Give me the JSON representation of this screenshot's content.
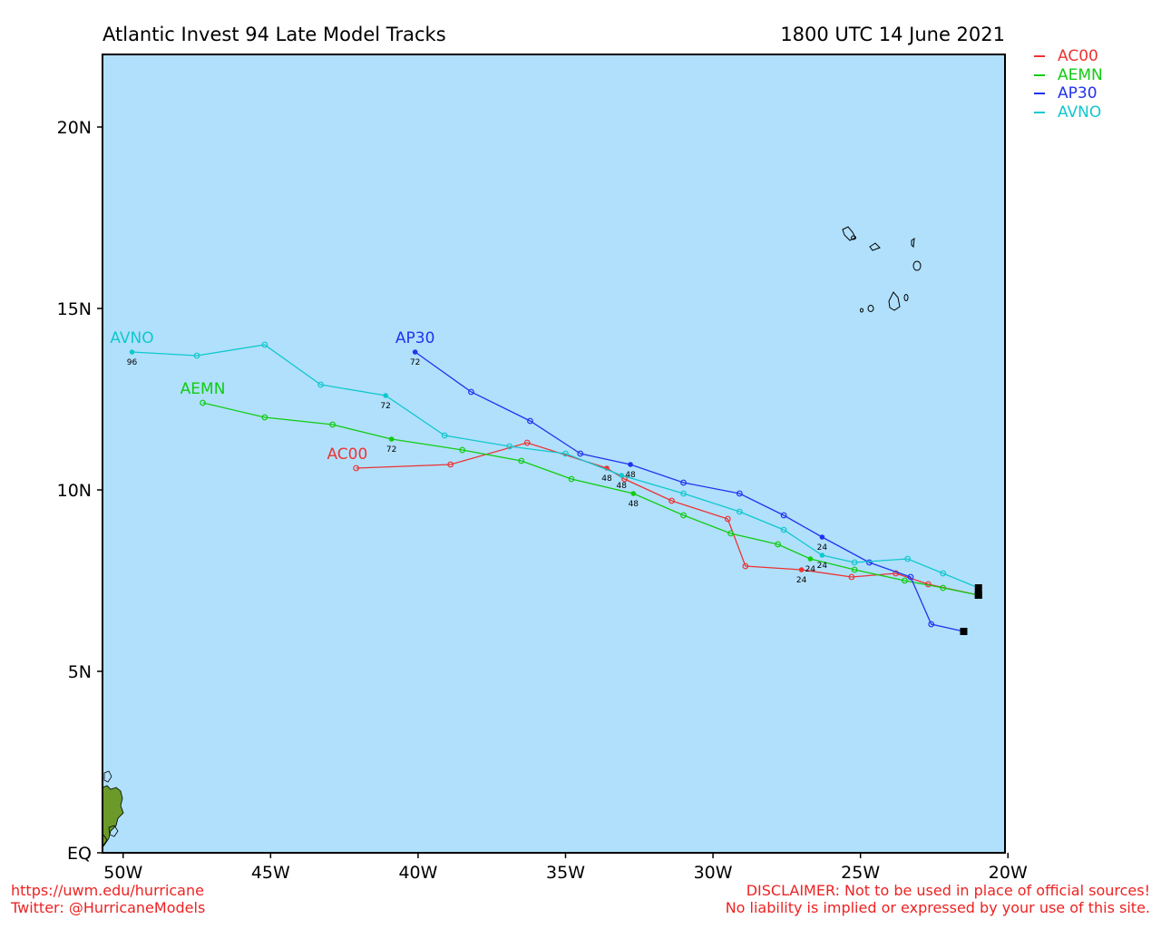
{
  "header": {
    "title": "Atlantic Invest 94 Late Model Tracks",
    "timestamp": "1800 UTC 14 June 2021"
  },
  "map": {
    "lon_range": [
      -50.7,
      -20.1
    ],
    "lat_range": [
      0,
      22
    ],
    "ocean_color": "#b0e0fc",
    "land_color": "#6b9a2a",
    "x_ticks": [
      {
        "lon": -50,
        "label": "50W"
      },
      {
        "lon": -45,
        "label": "45W"
      },
      {
        "lon": -40,
        "label": "40W"
      },
      {
        "lon": -35,
        "label": "35W"
      },
      {
        "lon": -30,
        "label": "30W"
      },
      {
        "lon": -25,
        "label": "25W"
      },
      {
        "lon": -20,
        "label": "20W"
      }
    ],
    "y_ticks": [
      {
        "lat": 0,
        "label": "EQ"
      },
      {
        "lat": 5,
        "label": "5N"
      },
      {
        "lat": 10,
        "label": "10N"
      },
      {
        "lat": 15,
        "label": "15N"
      },
      {
        "lat": 20,
        "label": "20N"
      }
    ]
  },
  "legend": [
    {
      "name": "AC00",
      "color": "#ee3333"
    },
    {
      "name": "AEMN",
      "color": "#11cc11"
    },
    {
      "name": "AP30",
      "color": "#2233ee"
    },
    {
      "name": "AVNO",
      "color": "#11c8cc"
    }
  ],
  "chart_data": {
    "type": "map_tracks",
    "tracks": [
      {
        "name": "AC00",
        "color": "#ee3333",
        "points": [
          [
            -21.0,
            7.1
          ],
          [
            -22.7,
            7.4
          ],
          [
            -23.8,
            7.7
          ],
          [
            -25.3,
            7.6
          ],
          [
            -27.0,
            7.8
          ],
          [
            -28.9,
            7.9
          ],
          [
            -29.5,
            9.2
          ],
          [
            -31.4,
            9.7
          ],
          [
            -33.0,
            10.3
          ],
          [
            -33.6,
            10.6
          ],
          [
            -36.3,
            11.3
          ],
          [
            -38.9,
            10.7
          ],
          [
            -42.1,
            10.6
          ]
        ],
        "label_at": [
          [
            -27.0,
            7.8,
            "24"
          ],
          [
            -33.6,
            10.6,
            "48"
          ]
        ],
        "end_label": "AC00",
        "end_label_pos": [
          -42.4,
          10.8
        ]
      },
      {
        "name": "AEMN",
        "color": "#11cc11",
        "points": [
          [
            -21.0,
            7.1
          ],
          [
            -22.2,
            7.3
          ],
          [
            -23.5,
            7.5
          ],
          [
            -25.2,
            7.8
          ],
          [
            -26.7,
            8.1
          ],
          [
            -27.8,
            8.5
          ],
          [
            -29.4,
            8.8
          ],
          [
            -31.0,
            9.3
          ],
          [
            -32.7,
            9.9
          ],
          [
            -34.8,
            10.3
          ],
          [
            -36.5,
            10.8
          ],
          [
            -38.5,
            11.1
          ],
          [
            -40.9,
            11.4
          ],
          [
            -42.9,
            11.8
          ],
          [
            -45.2,
            12.0
          ],
          [
            -47.3,
            12.4
          ]
        ],
        "label_at": [
          [
            -26.7,
            8.1,
            "24"
          ],
          [
            -32.7,
            9.9,
            "48"
          ],
          [
            -40.9,
            11.4,
            "72"
          ]
        ],
        "end_label": "AEMN",
        "end_label_pos": [
          -47.3,
          12.6
        ]
      },
      {
        "name": "AP30",
        "color": "#2233ee",
        "points": [
          [
            -21.5,
            6.1
          ],
          [
            -22.6,
            6.3
          ],
          [
            -23.3,
            7.6
          ],
          [
            -24.7,
            8.0
          ],
          [
            -26.3,
            8.7
          ],
          [
            -27.6,
            9.3
          ],
          [
            -29.1,
            9.9
          ],
          [
            -31.0,
            10.2
          ],
          [
            -32.8,
            10.7
          ],
          [
            -34.5,
            11.0
          ],
          [
            -36.2,
            11.9
          ],
          [
            -38.2,
            12.7
          ],
          [
            -40.1,
            13.8
          ]
        ],
        "label_at": [
          [
            -26.3,
            8.7,
            "24"
          ],
          [
            -32.8,
            10.7,
            "48"
          ],
          [
            -40.1,
            13.8,
            "72"
          ]
        ],
        "end_label": "AP30",
        "end_label_pos": [
          -40.1,
          14.0
        ]
      },
      {
        "name": "AVNO",
        "color": "#11c8cc",
        "points": [
          [
            -21.0,
            7.3
          ],
          [
            -22.2,
            7.7
          ],
          [
            -23.4,
            8.1
          ],
          [
            -25.2,
            8.0
          ],
          [
            -26.3,
            8.2
          ],
          [
            -27.6,
            8.9
          ],
          [
            -29.1,
            9.4
          ],
          [
            -31.0,
            9.9
          ],
          [
            -33.1,
            10.4
          ],
          [
            -35.0,
            11.0
          ],
          [
            -36.9,
            11.2
          ],
          [
            -39.1,
            11.5
          ],
          [
            -41.1,
            12.6
          ],
          [
            -43.3,
            12.9
          ],
          [
            -45.2,
            14.0
          ],
          [
            -47.5,
            13.7
          ],
          [
            -49.7,
            13.8
          ]
        ],
        "label_at": [
          [
            -26.3,
            8.2,
            "24"
          ],
          [
            -33.1,
            10.4,
            "48"
          ],
          [
            -41.1,
            12.6,
            "72"
          ],
          [
            -49.7,
            13.8,
            "96"
          ]
        ],
        "end_label": "AVNO",
        "end_label_pos": [
          -49.7,
          14.0
        ]
      }
    ]
  },
  "footer": {
    "left_line1": "https://uwm.edu/hurricane",
    "left_line2": "Twitter: @HurricaneModels",
    "right_line1": "DISCLAIMER: Not to be used in place of official sources!",
    "right_line2": "No liability is implied or expressed by your use of this site."
  }
}
